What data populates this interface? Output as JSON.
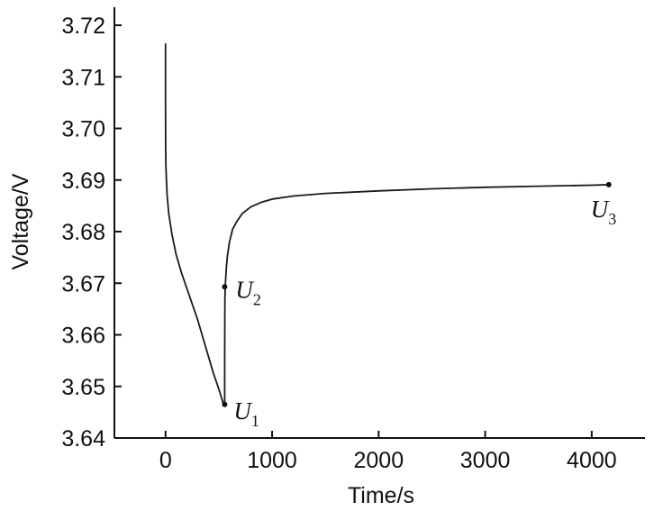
{
  "chart_data": {
    "type": "line",
    "title": "",
    "xlabel": "Time/s",
    "ylabel": "Voltage/V",
    "xlim": [
      -480,
      4500
    ],
    "ylim": [
      3.64,
      3.7235
    ],
    "x_ticks": [
      0,
      1000,
      2000,
      3000,
      4000
    ],
    "x_tick_labels": [
      "0",
      "1000",
      "2000",
      "3000",
      "4000"
    ],
    "y_ticks": [
      3.64,
      3.65,
      3.66,
      3.67,
      3.68,
      3.69,
      3.7,
      3.71,
      3.72
    ],
    "y_tick_labels": [
      "3.64",
      "3.65",
      "3.66",
      "3.67",
      "3.68",
      "3.69",
      "3.70",
      "3.71",
      "3.72"
    ],
    "grid": false,
    "series": [
      {
        "color": "#1a1a1a",
        "x": [
          0,
          0,
          1,
          3,
          8,
          15,
          30,
          60,
          100,
          150,
          200,
          250,
          300,
          350,
          400,
          450,
          500,
          540,
          555,
          555,
          556,
          557,
          560,
          570,
          580,
          600,
          630,
          670,
          720,
          800,
          900,
          1000,
          1200,
          1500,
          2000,
          2500,
          3000,
          3500,
          4000,
          4160
        ],
        "y": [
          3.7165,
          3.704,
          3.697,
          3.693,
          3.69,
          3.687,
          3.6835,
          3.6795,
          3.6755,
          3.672,
          3.669,
          3.666,
          3.663,
          3.6595,
          3.656,
          3.6525,
          3.6495,
          3.6468,
          3.6465,
          3.6535,
          3.661,
          3.6665,
          3.6693,
          3.6728,
          3.6752,
          3.678,
          3.6805,
          3.682,
          3.6835,
          3.6848,
          3.6857,
          3.6863,
          3.6869,
          3.6874,
          3.6879,
          3.6883,
          3.6886,
          3.6888,
          3.689,
          3.6891
        ]
      }
    ],
    "markers": [
      {
        "label": "U",
        "subscript": "1",
        "x": 555,
        "y": 3.6465
      },
      {
        "label": "U",
        "subscript": "2",
        "x": 555,
        "y": 3.6693
      },
      {
        "label": "U",
        "subscript": "3",
        "x": 4160,
        "y": 3.6891
      }
    ]
  }
}
